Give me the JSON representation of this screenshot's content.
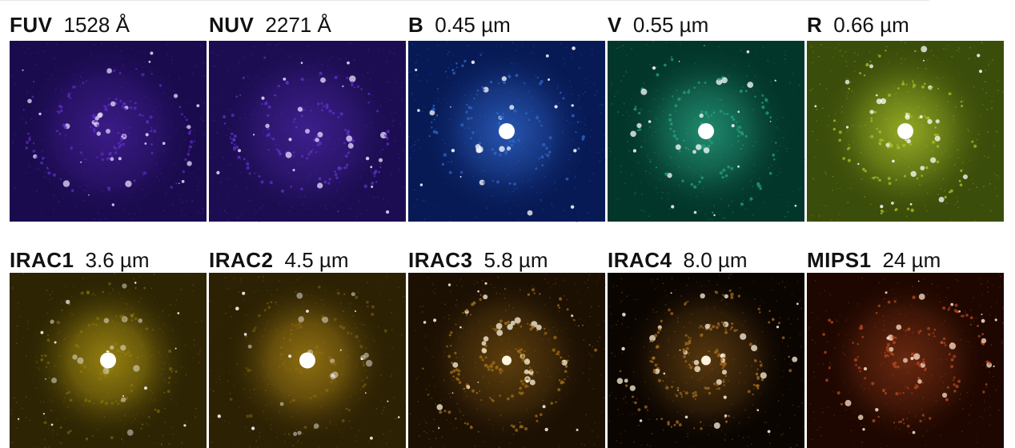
{
  "panels": [
    {
      "band": "FUV",
      "wavelength": "1528 Å",
      "colors": {
        "bg": "#1a0b4e",
        "mid": "#5b2bbf",
        "core": "#e9dcff"
      },
      "morphology": "clumpy"
    },
    {
      "band": "NUV",
      "wavelength": "2271 Å",
      "colors": {
        "bg": "#1c0d52",
        "mid": "#5d31c4",
        "core": "#ece2ff"
      },
      "morphology": "clumpy"
    },
    {
      "band": "B",
      "wavelength": "0.45 µm",
      "colors": {
        "bg": "#071a55",
        "mid": "#2f64c8",
        "core": "#ffffff"
      },
      "morphology": "spiral"
    },
    {
      "band": "V",
      "wavelength": "0.55 µm",
      "colors": {
        "bg": "#03362b",
        "mid": "#27a07f",
        "core": "#ffffff"
      },
      "morphology": "spiral"
    },
    {
      "band": "R",
      "wavelength": "0.66 µm",
      "colors": {
        "bg": "#3b4d0a",
        "mid": "#a9c12a",
        "core": "#ffffff"
      },
      "morphology": "spiral"
    },
    {
      "band": "IRAC1",
      "wavelength": "3.6 µm",
      "colors": {
        "bg": "#2c2403",
        "mid": "#9a8410",
        "core": "#ffffff"
      },
      "morphology": "smooth"
    },
    {
      "band": "IRAC2",
      "wavelength": "4.5 µm",
      "colors": {
        "bg": "#2c2103",
        "mid": "#937212",
        "core": "#ffffff"
      },
      "morphology": "smooth"
    },
    {
      "band": "IRAC3",
      "wavelength": "5.8 µm",
      "colors": {
        "bg": "#1c1003",
        "mid": "#9d6c17",
        "core": "#fff6df"
      },
      "morphology": "dusty"
    },
    {
      "band": "IRAC4",
      "wavelength": "8.0 µm",
      "colors": {
        "bg": "#0b0501",
        "mid": "#a26a1c",
        "core": "#fff3dc"
      },
      "morphology": "dusty"
    },
    {
      "band": "MIPS1",
      "wavelength": "24 µm",
      "colors": {
        "bg": "#1e0700",
        "mid": "#b2481f",
        "core": "#ffe0c9"
      },
      "morphology": "clumpy"
    }
  ]
}
